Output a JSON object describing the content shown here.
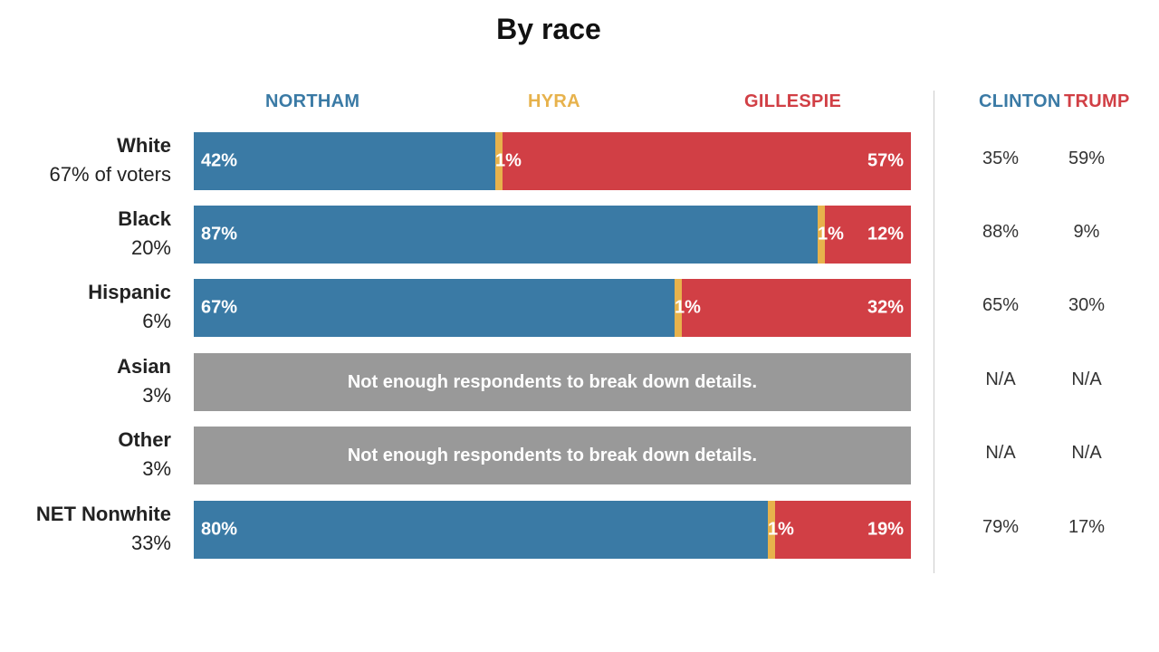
{
  "title": "By race",
  "headers": {
    "northam": "NORTHAM",
    "hyra": "HYRA",
    "gillespie": "GILLESPIE",
    "clinton": "CLINTON",
    "trump": "TRUMP"
  },
  "colors": {
    "northam": "#3a7aa5",
    "hyra": "#e7b24c",
    "gillespie": "#d13f45",
    "na": "#999999"
  },
  "chart_data": {
    "type": "bar",
    "stacked": true,
    "orientation": "horizontal",
    "title": "By race",
    "categories": [
      "White",
      "Black",
      "Hispanic",
      "Asian",
      "Other",
      "NET Nonwhite"
    ],
    "shares": [
      "67% of voters",
      "20%",
      "6%",
      "3%",
      "3%",
      "33%"
    ],
    "series": [
      {
        "name": "NORTHAM",
        "values": [
          42,
          87,
          67,
          null,
          null,
          80
        ]
      },
      {
        "name": "HYRA",
        "values": [
          1,
          1,
          1,
          null,
          null,
          1
        ]
      },
      {
        "name": "GILLESPIE",
        "values": [
          57,
          12,
          32,
          null,
          null,
          19
        ]
      }
    ],
    "na_message": "Not enough respondents to break down details.",
    "comparison": {
      "clinton": [
        "35%",
        "88%",
        "65%",
        "N/A",
        "N/A",
        "79%"
      ],
      "trump": [
        "59%",
        "9%",
        "30%",
        "N/A",
        "N/A",
        "17%"
      ]
    }
  }
}
